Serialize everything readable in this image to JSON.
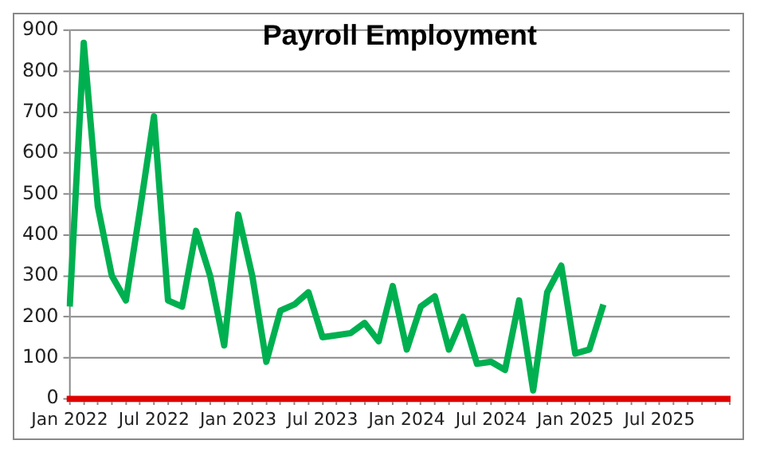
{
  "chart_data": {
    "type": "line",
    "title": "Payroll Employment",
    "categories": [
      "Jan 2022",
      null,
      null,
      null,
      null,
      null,
      "Jul 2022",
      null,
      null,
      null,
      null,
      null,
      "Jan 2023",
      null,
      null,
      null,
      null,
      null,
      "Jul 2023",
      null,
      null,
      null,
      null,
      null,
      "Jan 2024",
      null,
      null,
      null,
      null,
      null,
      "Jul 2024",
      null,
      null,
      null,
      null,
      null,
      "Jan 2025",
      null,
      null,
      null,
      null,
      null,
      "Jul 2025",
      null,
      null,
      null,
      null,
      null
    ],
    "series": [
      {
        "color": "#00b050",
        "values": [
          225,
          870,
          470,
          300,
          240,
          460,
          690,
          240,
          225,
          410,
          300,
          130,
          450,
          300,
          90,
          215,
          230,
          260,
          150,
          155,
          160,
          185,
          140,
          275,
          120,
          225,
          250,
          120,
          200,
          85,
          90,
          70,
          240,
          20,
          260,
          325,
          110,
          120,
          230,
          null,
          null,
          null,
          null,
          null,
          null,
          null,
          null,
          null
        ]
      }
    ],
    "ylim": [
      0,
      900
    ],
    "yticks": [
      0,
      100,
      200,
      300,
      400,
      500,
      600,
      700,
      800,
      900
    ],
    "grid": "y",
    "marker": "none",
    "line_style": "solid",
    "legend": false
  }
}
